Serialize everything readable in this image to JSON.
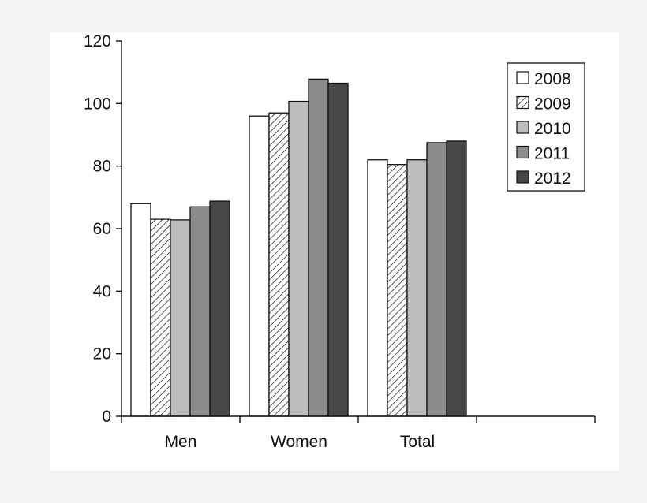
{
  "chart_data": {
    "type": "bar",
    "title": "",
    "xlabel": "",
    "ylabel": "",
    "categories": [
      "Men",
      "Women",
      "Total",
      ""
    ],
    "ylim": [
      0,
      120
    ],
    "yticks": [
      "0",
      "20",
      "40",
      "60",
      "80",
      "100",
      "120"
    ],
    "grid": false,
    "legend_position": "top-right",
    "series": [
      {
        "name": "2008",
        "values": [
          68,
          96,
          82,
          null
        ],
        "fill": "#ffffff",
        "pattern": "none"
      },
      {
        "name": "2009",
        "values": [
          63,
          97,
          80.5,
          null
        ],
        "fill": "#ffffff",
        "pattern": "hatch"
      },
      {
        "name": "2010",
        "values": [
          62.8,
          100.7,
          82,
          null
        ],
        "fill": "#bdbdbd",
        "pattern": "none"
      },
      {
        "name": "2011",
        "values": [
          67,
          107.8,
          87.5,
          null
        ],
        "fill": "#8c8c8c",
        "pattern": "none"
      },
      {
        "name": "2012",
        "values": [
          68.8,
          106.5,
          88,
          null
        ],
        "fill": "#474747",
        "pattern": "none"
      }
    ]
  },
  "colors": {
    "background": "#f2f2f2",
    "plot_background": "#ffffff",
    "axis": "#111111",
    "bar_stroke": "#111111"
  }
}
